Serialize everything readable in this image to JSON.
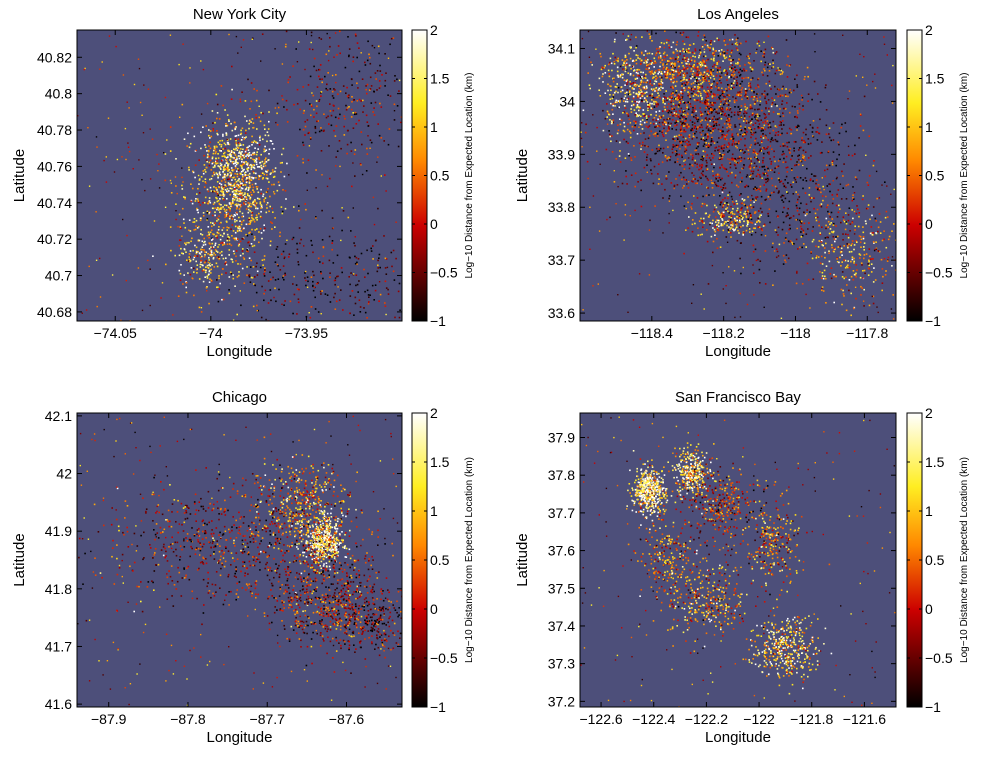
{
  "colors": {
    "background": "#4d4f7a",
    "point_stops": [
      "#000000",
      "#cc0000",
      "#ff8800",
      "#ffee22",
      "#ffffff"
    ]
  },
  "chart_data": [
    {
      "type": "heatmap",
      "title": "New York City",
      "xlabel": "Longitude",
      "ylabel": "Latitude",
      "colorbar_label": "Log−10 Distance from Expected Location (km)",
      "xlim": [
        -74.07,
        -73.9
      ],
      "ylim": [
        40.675,
        40.835
      ],
      "xticks": [
        -74.05,
        -74.0,
        -73.95
      ],
      "xtick_labels": [
        "−74.05",
        "−74",
        "−73.95"
      ],
      "yticks": [
        40.68,
        40.7,
        40.72,
        40.74,
        40.76,
        40.78,
        40.8,
        40.82
      ],
      "ytick_labels": [
        "40.68",
        "40.7",
        "40.72",
        "40.74",
        "40.76",
        "40.78",
        "40.8",
        "40.82"
      ],
      "clim": [
        -1,
        2
      ],
      "cticks": [
        -1,
        -0.5,
        0,
        0.5,
        1,
        1.5,
        2
      ],
      "ctick_labels": [
        "−1",
        "−0.5",
        "0",
        "0.5",
        "1",
        "1.5",
        "2"
      ],
      "clusters": [
        {
          "x": -73.99,
          "y": 40.745,
          "sx": 0.012,
          "sy": 0.022,
          "n": 900,
          "c": 0.7
        },
        {
          "x": -73.985,
          "y": 40.76,
          "sx": 0.008,
          "sy": 0.012,
          "n": 300,
          "c": 0.9
        },
        {
          "x": -73.93,
          "y": 40.8,
          "sx": 0.02,
          "sy": 0.02,
          "n": 300,
          "c": 0.2
        },
        {
          "x": -73.94,
          "y": 40.7,
          "sx": 0.03,
          "sy": 0.015,
          "n": 300,
          "c": 0.1
        },
        {
          "x": -74.005,
          "y": 40.71,
          "sx": 0.006,
          "sy": 0.008,
          "n": 150,
          "c": 0.8
        }
      ]
    },
    {
      "type": "heatmap",
      "title": "Los Angeles",
      "xlabel": "Longitude",
      "ylabel": "Latitude",
      "colorbar_label": "Log−10 Distance from Expected Location (km)",
      "xlim": [
        -118.6,
        -117.72
      ],
      "ylim": [
        33.585,
        34.135
      ],
      "xticks": [
        -118.4,
        -118.2,
        -118.0,
        -117.8
      ],
      "xtick_labels": [
        "−118.4",
        "−118.2",
        "−118",
        "−117.8"
      ],
      "yticks": [
        33.6,
        33.7,
        33.8,
        33.9,
        34.0,
        34.1
      ],
      "ytick_labels": [
        "33.6",
        "33.7",
        "33.8",
        "33.9",
        "34",
        "34.1"
      ],
      "clim": [
        -1,
        2
      ],
      "cticks": [
        -1,
        -0.5,
        0,
        0.5,
        1,
        1.5,
        2
      ],
      "ctick_labels": [
        "−1",
        "−0.5",
        "0",
        "0.5",
        "1",
        "1.5",
        "2"
      ],
      "clusters": [
        {
          "x": -118.25,
          "y": 33.97,
          "sx": 0.12,
          "sy": 0.07,
          "n": 1500,
          "c": 0.3
        },
        {
          "x": -118.3,
          "y": 34.06,
          "sx": 0.1,
          "sy": 0.03,
          "n": 500,
          "c": 0.6
        },
        {
          "x": -118.05,
          "y": 33.85,
          "sx": 0.12,
          "sy": 0.08,
          "n": 600,
          "c": 0.2
        },
        {
          "x": -118.18,
          "y": 33.78,
          "sx": 0.05,
          "sy": 0.02,
          "n": 200,
          "c": 0.7
        },
        {
          "x": -117.85,
          "y": 33.72,
          "sx": 0.07,
          "sy": 0.05,
          "n": 300,
          "c": 0.6
        },
        {
          "x": -118.45,
          "y": 34.02,
          "sx": 0.05,
          "sy": 0.04,
          "n": 300,
          "c": 0.8
        }
      ]
    },
    {
      "type": "heatmap",
      "title": "Chicago",
      "xlabel": "Longitude",
      "ylabel": "Latitude",
      "colorbar_label": "Log−10 Distance from Expected Location (km)",
      "xlim": [
        -87.94,
        -87.53
      ],
      "ylim": [
        41.595,
        42.105
      ],
      "xticks": [
        -87.9,
        -87.8,
        -87.7,
        -87.6
      ],
      "xtick_labels": [
        "−87.9",
        "−87.8",
        "−87.7",
        "−87.6"
      ],
      "yticks": [
        41.6,
        41.7,
        41.8,
        41.9,
        42.0,
        42.1
      ],
      "ytick_labels": [
        "41.6",
        "41.7",
        "41.8",
        "41.9",
        "42",
        "42.1"
      ],
      "clim": [
        -1,
        2
      ],
      "cticks": [
        -1,
        -0.5,
        0,
        0.5,
        1,
        1.5,
        2
      ],
      "ctick_labels": [
        "−1",
        "−0.5",
        "0",
        "0.5",
        "1",
        "1.5",
        "2"
      ],
      "clusters": [
        {
          "x": -87.63,
          "y": 41.885,
          "sx": 0.012,
          "sy": 0.02,
          "n": 500,
          "c": 0.85
        },
        {
          "x": -87.66,
          "y": 41.95,
          "sx": 0.03,
          "sy": 0.04,
          "n": 400,
          "c": 0.6
        },
        {
          "x": -87.62,
          "y": 41.78,
          "sx": 0.04,
          "sy": 0.04,
          "n": 600,
          "c": 0.3
        },
        {
          "x": -87.75,
          "y": 41.88,
          "sx": 0.08,
          "sy": 0.05,
          "n": 700,
          "c": 0.3
        },
        {
          "x": -87.57,
          "y": 41.74,
          "sx": 0.025,
          "sy": 0.025,
          "n": 200,
          "c": 0.2
        }
      ]
    },
    {
      "type": "heatmap",
      "title": "San Francisco Bay",
      "xlabel": "Longitude",
      "ylabel": "Latitude",
      "colorbar_label": "Log−10 Distance from Expected Location (km)",
      "xlim": [
        -122.68,
        -121.48
      ],
      "ylim": [
        37.185,
        37.965
      ],
      "xticks": [
        -122.6,
        -122.4,
        -122.2,
        -122.0,
        -121.8,
        -121.6
      ],
      "xtick_labels": [
        "−122.6",
        "−122.4",
        "−122.2",
        "−122",
        "−121.8",
        "−121.6"
      ],
      "yticks": [
        37.2,
        37.3,
        37.4,
        37.5,
        37.6,
        37.7,
        37.8,
        37.9
      ],
      "ytick_labels": [
        "37.2",
        "37.3",
        "37.4",
        "37.5",
        "37.6",
        "37.7",
        "37.8",
        "37.9"
      ],
      "clim": [
        -1,
        2
      ],
      "cticks": [
        -1,
        -0.5,
        0,
        0.5,
        1,
        1.5,
        2
      ],
      "ctick_labels": [
        "−1",
        "−0.5",
        "0",
        "0.5",
        "1",
        "1.5",
        "2"
      ],
      "clusters": [
        {
          "x": -122.42,
          "y": 37.76,
          "sx": 0.03,
          "sy": 0.03,
          "n": 500,
          "c": 0.85
        },
        {
          "x": -122.26,
          "y": 37.81,
          "sx": 0.03,
          "sy": 0.03,
          "n": 300,
          "c": 0.8
        },
        {
          "x": -122.15,
          "y": 37.72,
          "sx": 0.06,
          "sy": 0.05,
          "n": 300,
          "c": 0.4
        },
        {
          "x": -121.95,
          "y": 37.62,
          "sx": 0.05,
          "sy": 0.06,
          "n": 250,
          "c": 0.5
        },
        {
          "x": -121.9,
          "y": 37.34,
          "sx": 0.06,
          "sy": 0.04,
          "n": 400,
          "c": 0.75
        },
        {
          "x": -122.2,
          "y": 37.47,
          "sx": 0.08,
          "sy": 0.05,
          "n": 300,
          "c": 0.6
        },
        {
          "x": -122.35,
          "y": 37.58,
          "sx": 0.05,
          "sy": 0.05,
          "n": 200,
          "c": 0.5
        }
      ]
    }
  ]
}
